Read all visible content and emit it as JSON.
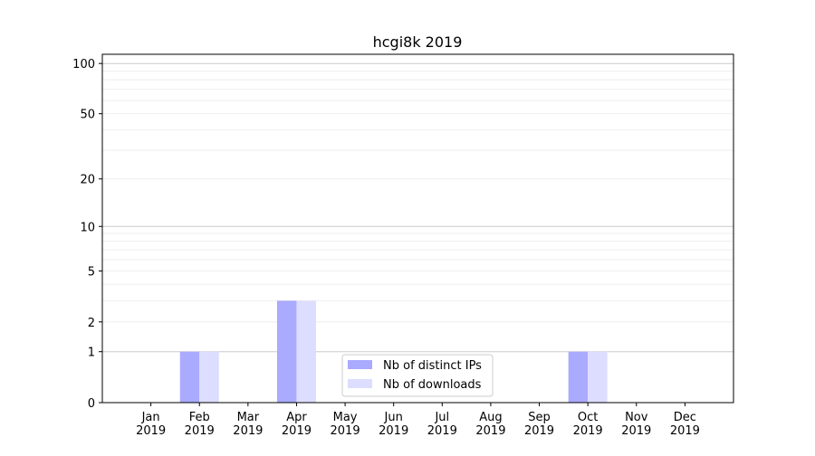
{
  "chart_data": {
    "type": "bar",
    "title": "hcgi8k 2019",
    "xlabel": "",
    "ylabel": "",
    "yscale": "log(1+y)",
    "ylim": [
      0,
      113.5
    ],
    "yticks": [
      0,
      1,
      2,
      5,
      10,
      20,
      50,
      100
    ],
    "grid": true,
    "legend_position": "bottom-center",
    "categories": [
      "Jan\n2019",
      "Feb\n2019",
      "Mar\n2019",
      "Apr\n2019",
      "May\n2019",
      "Jun\n2019",
      "Jul\n2019",
      "Aug\n2019",
      "Sep\n2019",
      "Oct\n2019",
      "Nov\n2019",
      "Dec\n2019"
    ],
    "series": [
      {
        "name": "Nb of distinct IPs",
        "color": "#aaaaff",
        "values": [
          0,
          1,
          0,
          3,
          0,
          0,
          0,
          0,
          0,
          1,
          0,
          0
        ]
      },
      {
        "name": "Nb of downloads",
        "color": "#ddddff",
        "values": [
          0,
          1,
          0,
          3,
          0,
          0,
          0,
          0,
          0,
          1,
          0,
          0
        ]
      }
    ]
  }
}
